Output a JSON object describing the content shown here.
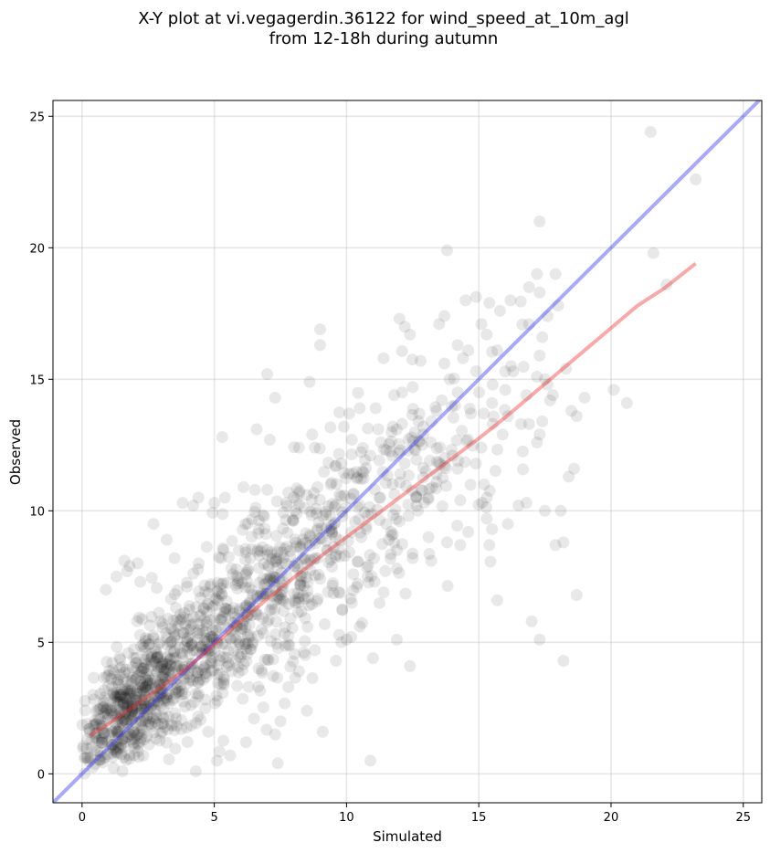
{
  "chart_data": {
    "type": "scatter",
    "title": "X-Y plot at vi.vegagerdin.36122 for wind_speed_at_10m_agl\nfrom 12-18h during autumn",
    "title_lines": [
      "X-Y plot at vi.vegagerdin.36122 for wind_speed_at_10m_agl",
      "from 12-18h during autumn"
    ],
    "xlabel": "Simulated",
    "ylabel": "Observed",
    "xlim": [
      -1.1,
      25.7
    ],
    "ylim": [
      -1.1,
      25.6
    ],
    "xticks": [
      0,
      5,
      10,
      15,
      20,
      25
    ],
    "yticks": [
      0,
      5,
      10,
      15,
      20,
      25
    ],
    "grid": true,
    "legend": "none",
    "point_color": "#000000",
    "point_alpha": 0.09,
    "identity_line": {
      "color": "#3333ee",
      "alpha": 0.42,
      "x": [
        -1.1,
        25.7
      ],
      "y": [
        -1.1,
        25.7
      ]
    },
    "fit_line": {
      "color": "#ee3333",
      "alpha": 0.42,
      "x": [
        0.3,
        1,
        2,
        3,
        4,
        5,
        6,
        7,
        8,
        9,
        10,
        11,
        12,
        13,
        14,
        15,
        16,
        17,
        18,
        19,
        20,
        21,
        22,
        23.2
      ],
      "y": [
        1.45,
        1.9,
        2.6,
        3.3,
        4.05,
        4.9,
        5.8,
        6.65,
        7.45,
        8.25,
        9.0,
        9.75,
        10.5,
        11.25,
        12.0,
        12.75,
        13.55,
        14.4,
        15.25,
        16.1,
        16.95,
        17.8,
        18.45,
        19.4
      ]
    },
    "points": [
      [
        21.5,
        24.4
      ],
      [
        23.2,
        22.6
      ],
      [
        17.3,
        21.0
      ],
      [
        13.8,
        19.9
      ],
      [
        21.6,
        19.8
      ],
      [
        17.2,
        19.0
      ],
      [
        17.9,
        19.0
      ],
      [
        22.1,
        18.6
      ],
      [
        16.9,
        18.5
      ],
      [
        17.3,
        18.3
      ],
      [
        14.5,
        18.0
      ],
      [
        16.2,
        18.0
      ],
      [
        15.4,
        17.9
      ],
      [
        18.0,
        17.8
      ],
      [
        15.8,
        17.6
      ],
      [
        13.7,
        17.4
      ],
      [
        17.6,
        17.4
      ],
      [
        12.0,
        17.3
      ],
      [
        13.5,
        17.1
      ],
      [
        15.1,
        17.1
      ],
      [
        16.9,
        17.1
      ],
      [
        12.2,
        17.0
      ],
      [
        9.0,
        16.9
      ],
      [
        12.4,
        16.7
      ],
      [
        15.3,
        16.7
      ],
      [
        17.4,
        16.6
      ],
      [
        9.0,
        16.3
      ],
      [
        14.2,
        16.3
      ],
      [
        14.6,
        16.1
      ],
      [
        15.7,
        16.1
      ],
      [
        17.3,
        15.9
      ],
      [
        11.4,
        15.8
      ],
      [
        14.4,
        15.8
      ],
      [
        12.8,
        15.7
      ],
      [
        13.7,
        15.6
      ],
      [
        18.3,
        15.4
      ],
      [
        7.0,
        15.2
      ],
      [
        14.9,
        15.3
      ],
      [
        16.0,
        15.3
      ],
      [
        16.3,
        15.3
      ],
      [
        17.2,
        15.1
      ],
      [
        17.5,
        15.0
      ],
      [
        13.9,
        15.0
      ],
      [
        8.6,
        14.9
      ],
      [
        17.6,
        14.8
      ],
      [
        16.0,
        14.6
      ],
      [
        12.5,
        14.7
      ],
      [
        20.1,
        14.6
      ],
      [
        12.1,
        14.5
      ],
      [
        11.8,
        14.4
      ],
      [
        16.8,
        14.4
      ],
      [
        17.8,
        14.4
      ],
      [
        7.3,
        14.3
      ],
      [
        19.0,
        14.3
      ],
      [
        13.6,
        14.2
      ],
      [
        17.7,
        14.2
      ],
      [
        15.5,
        14.1
      ],
      [
        20.6,
        14.1
      ],
      [
        14.1,
        14.0
      ],
      [
        10.5,
        13.9
      ],
      [
        11.1,
        13.9
      ],
      [
        13.4,
        13.8
      ],
      [
        18.5,
        13.8
      ],
      [
        10.1,
        13.7
      ],
      [
        14.7,
        13.7
      ],
      [
        16.1,
        13.6
      ],
      [
        18.7,
        13.6
      ],
      [
        17.4,
        13.4
      ],
      [
        16.6,
        13.3
      ],
      [
        16.9,
        13.3
      ],
      [
        12.1,
        13.3
      ],
      [
        9.9,
        13.2
      ],
      [
        6.6,
        13.1
      ],
      [
        11.2,
        13.1
      ],
      [
        12.9,
        12.9
      ],
      [
        15.9,
        12.9
      ],
      [
        17.3,
        12.9
      ],
      [
        8.7,
        12.9
      ],
      [
        5.3,
        12.8
      ],
      [
        14.6,
        12.7
      ],
      [
        7.1,
        12.7
      ],
      [
        17.2,
        12.6
      ],
      [
        8.2,
        12.4
      ],
      [
        15.1,
        12.4
      ],
      [
        12.6,
        12.3
      ],
      [
        18.4,
        11.3
      ],
      [
        14.2,
        11.6
      ],
      [
        18.6,
        11.6
      ],
      [
        13.0,
        11.5
      ],
      [
        15.2,
        11.0
      ],
      [
        16.8,
        10.3
      ],
      [
        15.3,
        10.5
      ],
      [
        14.3,
        10.4
      ],
      [
        16.5,
        10.2
      ],
      [
        17.5,
        10.0
      ],
      [
        15.3,
        9.7
      ],
      [
        16.1,
        9.5
      ],
      [
        15.5,
        9.3
      ],
      [
        18.1,
        10.0
      ],
      [
        14.6,
        9.2
      ],
      [
        14.3,
        8.7
      ],
      [
        13.8,
        8.8
      ],
      [
        15.4,
        8.7
      ],
      [
        17.9,
        8.7
      ],
      [
        18.2,
        8.8
      ],
      [
        18.7,
        6.8
      ],
      [
        15.7,
        6.6
      ],
      [
        17.0,
        5.8
      ],
      [
        17.3,
        5.1
      ],
      [
        18.2,
        4.3
      ],
      [
        12.4,
        4.1
      ],
      [
        11.0,
        4.4
      ],
      [
        11.9,
        5.1
      ],
      [
        10.9,
        0.5
      ],
      [
        9.1,
        1.6
      ],
      [
        7.3,
        1.5
      ],
      [
        7.4,
        0.4
      ],
      [
        4.3,
        0.1
      ],
      [
        3.8,
        10.3
      ],
      [
        4.4,
        10.5
      ],
      [
        5.0,
        10.3
      ],
      [
        4.2,
        10.2
      ],
      [
        5.4,
        10.5
      ],
      [
        6.1,
        10.9
      ],
      [
        7.0,
        10.8
      ],
      [
        7.8,
        10.7
      ],
      [
        8.9,
        10.9
      ],
      [
        9.4,
        11.0
      ],
      [
        10.6,
        11.5
      ],
      [
        9.8,
        11.8
      ],
      [
        10.9,
        12.1
      ],
      [
        8.8,
        12.4
      ],
      [
        11.3,
        12.6
      ],
      [
        10.2,
        12.7
      ],
      [
        11.7,
        13.0
      ],
      [
        12.9,
        13.2
      ],
      [
        11.5,
        12.3
      ],
      [
        12.2,
        11.8
      ],
      [
        13.4,
        11.4
      ],
      [
        14.0,
        12.1
      ],
      [
        13.1,
        10.5
      ],
      [
        12.7,
        10.0
      ],
      [
        12.0,
        9.6
      ],
      [
        13.1,
        9.0
      ],
      [
        11.6,
        8.9
      ],
      [
        12.5,
        8.2
      ],
      [
        11.9,
        7.8
      ],
      [
        13.2,
        8.1
      ],
      [
        10.8,
        7.5
      ],
      [
        11.4,
        6.9
      ],
      [
        10.2,
        6.5
      ],
      [
        10.5,
        5.6
      ],
      [
        9.8,
        5.0
      ],
      [
        9.6,
        4.3
      ],
      [
        8.8,
        4.7
      ],
      [
        8.2,
        3.9
      ],
      [
        7.8,
        3.3
      ],
      [
        8.5,
        2.4
      ],
      [
        7.5,
        2.0
      ],
      [
        6.2,
        1.2
      ],
      [
        5.6,
        0.7
      ],
      [
        5.1,
        0.5
      ],
      [
        6.5,
        2.1
      ],
      [
        2.7,
        9.5
      ],
      [
        3.2,
        8.9
      ],
      [
        3.5,
        8.2
      ],
      [
        1.6,
        8.1
      ],
      [
        1.7,
        7.7
      ],
      [
        1.3,
        7.5
      ],
      [
        2.2,
        7.3
      ],
      [
        1.8,
        7.9
      ],
      [
        0.9,
        7.0
      ],
      [
        2.1,
        8.0
      ]
    ],
    "dense_clusters": [
      {
        "cx": 1.5,
        "cy": 2.2,
        "sx": 0.9,
        "sy": 1.2,
        "n": 320
      },
      {
        "cx": 3.2,
        "cy": 3.6,
        "sx": 1.3,
        "sy": 1.6,
        "n": 300
      },
      {
        "cx": 5.5,
        "cy": 5.6,
        "sx": 1.6,
        "sy": 2.0,
        "n": 260
      },
      {
        "cx": 7.8,
        "cy": 7.7,
        "sx": 1.8,
        "sy": 2.2,
        "n": 200
      },
      {
        "cx": 10.2,
        "cy": 9.6,
        "sx": 2.0,
        "sy": 2.3,
        "n": 150
      },
      {
        "cx": 13.0,
        "cy": 11.4,
        "sx": 2.2,
        "sy": 2.4,
        "n": 90
      }
    ]
  }
}
